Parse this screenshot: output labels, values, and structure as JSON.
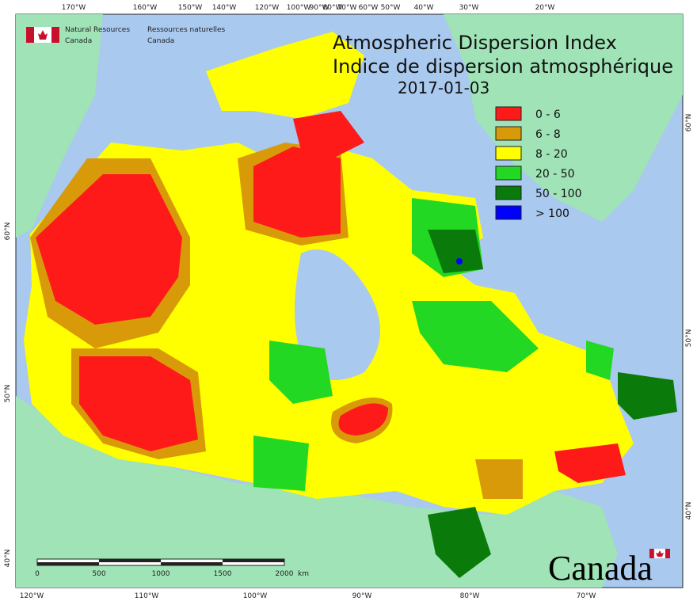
{
  "header": {
    "agency_en": [
      "Natural Resources",
      "Canada"
    ],
    "agency_fr": [
      "Ressources naturelles",
      "Canada"
    ]
  },
  "title": [
    "Atmospheric Dispersion Index",
    "Indice de dispersion atmosphérique"
  ],
  "date": "2017-01-03",
  "legend": [
    {
      "label": "0 - 6",
      "color": "#ff1a1a"
    },
    {
      "label": "6 - 8",
      "color": "#d99a0a"
    },
    {
      "label": "8 - 20",
      "color": "#ffff00"
    },
    {
      "label": "20 - 50",
      "color": "#22d822"
    },
    {
      "label": "50 - 100",
      "color": "#0a7a0a"
    },
    {
      "label": "> 100",
      "color": "#0000ff"
    }
  ],
  "lon_labels_top": [
    "170°W",
    "160°W",
    "150°W",
    "140°W",
    "120°W",
    "100°W",
    "90°W",
    "80°W",
    "70°W",
    "60°W",
    "50°W",
    "40°W",
    "30°W",
    "20°W"
  ],
  "lon_labels_bottom": [
    "120°W",
    "110°W",
    "100°W",
    "90°W",
    "80°W",
    "70°W"
  ],
  "lat_labels_left": [
    "60°N",
    "50°N",
    "40°N"
  ],
  "lat_labels_right": [
    "60°N",
    "50°N",
    "40°N"
  ],
  "scale": {
    "labels": [
      "0",
      "500",
      "1000",
      "1500",
      "2000"
    ],
    "unit": "km"
  },
  "wordmark": "Canada"
}
